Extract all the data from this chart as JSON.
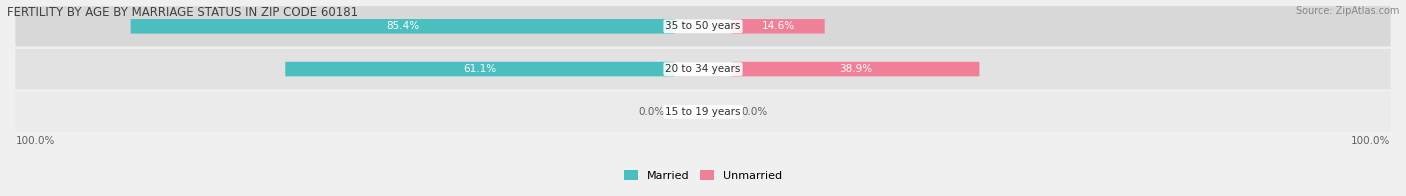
{
  "title": "FERTILITY BY AGE BY MARRIAGE STATUS IN ZIP CODE 60181",
  "source": "Source: ZipAtlas.com",
  "categories": [
    "15 to 19 years",
    "20 to 34 years",
    "35 to 50 years"
  ],
  "married": [
    0.0,
    61.1,
    85.4
  ],
  "unmarried": [
    0.0,
    38.9,
    14.6
  ],
  "married_color": "#4bbfbf",
  "unmarried_color": "#f08098",
  "title_color": "#404040",
  "text_color_outside": "#606060",
  "axis_label_left": "100.0%",
  "axis_label_right": "100.0%",
  "figsize": [
    14.06,
    1.96
  ],
  "dpi": 100,
  "bg_color": "#f0f0f0",
  "row_colors": [
    "#ebebeb",
    "#e2e2e2",
    "#d8d8d8"
  ]
}
